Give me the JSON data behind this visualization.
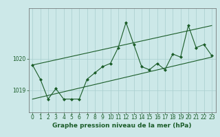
{
  "title": "Graphe pression niveau de la mer (hPa)",
  "bg_color": "#cce8e8",
  "grid_color": "#a8cece",
  "line_color": "#1a5c28",
  "marker_color": "#1a5c28",
  "x_ticks": [
    0,
    1,
    2,
    3,
    4,
    5,
    6,
    7,
    8,
    9,
    10,
    11,
    12,
    13,
    14,
    15,
    16,
    17,
    18,
    19,
    20,
    21,
    22,
    23
  ],
  "yticks": [
    1019,
    1020
  ],
  "ylim": [
    1018.3,
    1021.6
  ],
  "xlim": [
    -0.5,
    23.5
  ],
  "main_data": [
    1019.8,
    1019.35,
    1018.72,
    1019.05,
    1018.72,
    1018.72,
    1018.72,
    1019.35,
    1019.55,
    1019.75,
    1019.85,
    1020.35,
    1021.15,
    1020.45,
    1019.75,
    1019.65,
    1019.85,
    1019.65,
    1020.15,
    1020.05,
    1021.05,
    1020.35,
    1020.45,
    1020.1
  ],
  "lower_line_x": [
    0,
    23
  ],
  "lower_line_y": [
    1018.72,
    1020.05
  ],
  "upper_line_x": [
    0,
    23
  ],
  "upper_line_y": [
    1019.8,
    1021.05
  ],
  "title_color": "#1a5c28",
  "title_fontsize": 6.5,
  "tick_fontsize": 5.5,
  "tick_color": "#1a5c28",
  "ylabel_left_pad": 28
}
